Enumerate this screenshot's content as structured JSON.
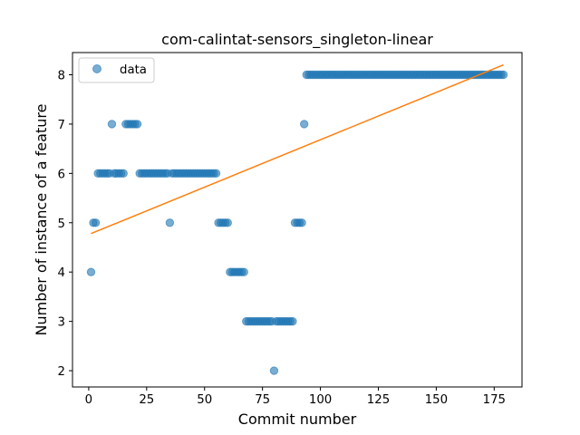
{
  "chart_data": {
    "type": "scatter",
    "title": "com-calintat-sensors_singleton-linear",
    "xlabel": "Commit number",
    "ylabel": "Number of instance of a feature",
    "xlim": [
      -7,
      187
    ],
    "ylim": [
      1.67,
      8.45
    ],
    "xticks": [
      0,
      25,
      50,
      75,
      100,
      125,
      150,
      175
    ],
    "yticks": [
      2,
      3,
      4,
      5,
      6,
      7,
      8
    ],
    "legend": {
      "placement": "upper-left",
      "entries": [
        "data"
      ]
    },
    "colors": {
      "data": "#1f77b4",
      "fit": "#ff7f0e"
    },
    "series": [
      {
        "name": "data",
        "marker": "circle",
        "points": [
          [
            1,
            4
          ],
          [
            2,
            5
          ],
          [
            3,
            5
          ],
          [
            4,
            6
          ],
          [
            5,
            6
          ],
          [
            6,
            6
          ],
          [
            7,
            6
          ],
          [
            8,
            6
          ],
          [
            9,
            6
          ],
          [
            10,
            7
          ],
          [
            11,
            6
          ],
          [
            12,
            6
          ],
          [
            13,
            6
          ],
          [
            14,
            6
          ],
          [
            15,
            6
          ],
          [
            16,
            7
          ],
          [
            17,
            7
          ],
          [
            18,
            7
          ],
          [
            19,
            7
          ],
          [
            20,
            7
          ],
          [
            21,
            7
          ],
          [
            22,
            6
          ],
          [
            23,
            6
          ],
          [
            24,
            6
          ],
          [
            25,
            6
          ],
          [
            26,
            6
          ],
          [
            27,
            6
          ],
          [
            28,
            6
          ],
          [
            29,
            6
          ],
          [
            30,
            6
          ],
          [
            31,
            6
          ],
          [
            32,
            6
          ],
          [
            33,
            6
          ],
          [
            34,
            6
          ],
          [
            35,
            5
          ],
          [
            36,
            6
          ],
          [
            37,
            6
          ],
          [
            38,
            6
          ],
          [
            39,
            6
          ],
          [
            40,
            6
          ],
          [
            41,
            6
          ],
          [
            42,
            6
          ],
          [
            43,
            6
          ],
          [
            44,
            6
          ],
          [
            45,
            6
          ],
          [
            46,
            6
          ],
          [
            47,
            6
          ],
          [
            48,
            6
          ],
          [
            49,
            6
          ],
          [
            50,
            6
          ],
          [
            51,
            6
          ],
          [
            52,
            6
          ],
          [
            53,
            6
          ],
          [
            54,
            6
          ],
          [
            55,
            6
          ],
          [
            56,
            5
          ],
          [
            57,
            5
          ],
          [
            58,
            5
          ],
          [
            59,
            5
          ],
          [
            60,
            5
          ],
          [
            61,
            4
          ],
          [
            62,
            4
          ],
          [
            63,
            4
          ],
          [
            64,
            4
          ],
          [
            65,
            4
          ],
          [
            66,
            4
          ],
          [
            67,
            4
          ],
          [
            68,
            3
          ],
          [
            69,
            3
          ],
          [
            70,
            3
          ],
          [
            71,
            3
          ],
          [
            72,
            3
          ],
          [
            73,
            3
          ],
          [
            74,
            3
          ],
          [
            75,
            3
          ],
          [
            76,
            3
          ],
          [
            77,
            3
          ],
          [
            78,
            3
          ],
          [
            79,
            3
          ],
          [
            80,
            2
          ],
          [
            81,
            3
          ],
          [
            82,
            3
          ],
          [
            83,
            3
          ],
          [
            84,
            3
          ],
          [
            85,
            3
          ],
          [
            86,
            3
          ],
          [
            87,
            3
          ],
          [
            88,
            3
          ],
          [
            89,
            5
          ],
          [
            90,
            5
          ],
          [
            91,
            5
          ],
          [
            92,
            5
          ],
          [
            93,
            7
          ],
          [
            94,
            8
          ],
          [
            95,
            8
          ],
          [
            96,
            8
          ],
          [
            97,
            8
          ],
          [
            98,
            8
          ],
          [
            99,
            8
          ],
          [
            100,
            8
          ],
          [
            101,
            8
          ],
          [
            102,
            8
          ],
          [
            103,
            8
          ],
          [
            104,
            8
          ],
          [
            105,
            8
          ],
          [
            106,
            8
          ],
          [
            107,
            8
          ],
          [
            108,
            8
          ],
          [
            109,
            8
          ],
          [
            110,
            8
          ],
          [
            111,
            8
          ],
          [
            112,
            8
          ],
          [
            113,
            8
          ],
          [
            114,
            8
          ],
          [
            115,
            8
          ],
          [
            116,
            8
          ],
          [
            117,
            8
          ],
          [
            118,
            8
          ],
          [
            119,
            8
          ],
          [
            120,
            8
          ],
          [
            121,
            8
          ],
          [
            122,
            8
          ],
          [
            123,
            8
          ],
          [
            124,
            8
          ],
          [
            125,
            8
          ],
          [
            126,
            8
          ],
          [
            127,
            8
          ],
          [
            128,
            8
          ],
          [
            129,
            8
          ],
          [
            130,
            8
          ],
          [
            131,
            8
          ],
          [
            132,
            8
          ],
          [
            133,
            8
          ],
          [
            134,
            8
          ],
          [
            135,
            8
          ],
          [
            136,
            8
          ],
          [
            137,
            8
          ],
          [
            138,
            8
          ],
          [
            139,
            8
          ],
          [
            140,
            8
          ],
          [
            141,
            8
          ],
          [
            142,
            8
          ],
          [
            143,
            8
          ],
          [
            144,
            8
          ],
          [
            145,
            8
          ],
          [
            146,
            8
          ],
          [
            147,
            8
          ],
          [
            148,
            8
          ],
          [
            149,
            8
          ],
          [
            150,
            8
          ],
          [
            151,
            8
          ],
          [
            152,
            8
          ],
          [
            153,
            8
          ],
          [
            154,
            8
          ],
          [
            155,
            8
          ],
          [
            156,
            8
          ],
          [
            157,
            8
          ],
          [
            158,
            8
          ],
          [
            159,
            8
          ],
          [
            160,
            8
          ],
          [
            161,
            8
          ],
          [
            162,
            8
          ],
          [
            163,
            8
          ],
          [
            164,
            8
          ],
          [
            165,
            8
          ],
          [
            166,
            8
          ],
          [
            167,
            8
          ],
          [
            168,
            8
          ],
          [
            169,
            8
          ],
          [
            170,
            8
          ],
          [
            171,
            8
          ],
          [
            172,
            8
          ],
          [
            173,
            8
          ],
          [
            174,
            8
          ],
          [
            175,
            8
          ],
          [
            176,
            8
          ],
          [
            177,
            8
          ],
          [
            178,
            8
          ],
          [
            179,
            8
          ]
        ]
      },
      {
        "type": "line",
        "points": [
          [
            1,
            4.78
          ],
          [
            179,
            8.2
          ]
        ]
      }
    ]
  }
}
